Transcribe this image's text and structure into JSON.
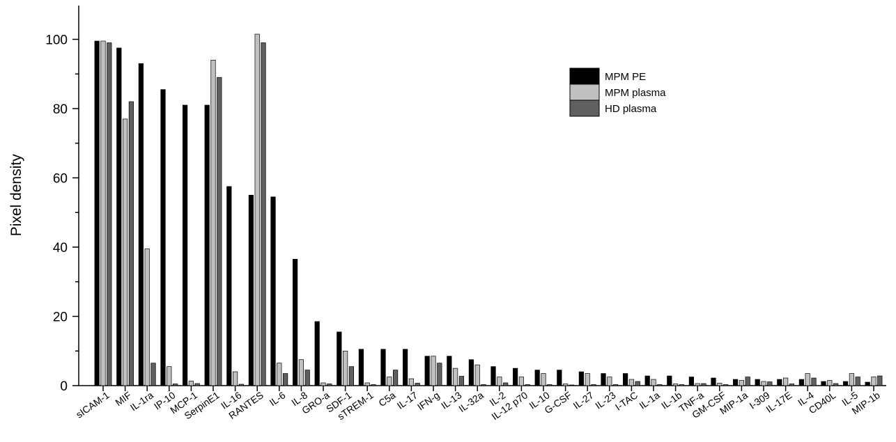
{
  "chart_data": {
    "type": "bar",
    "title": "",
    "xlabel": "",
    "ylabel": "Pixel density",
    "ylim": [
      0,
      110
    ],
    "yticks": [
      0,
      20,
      40,
      60,
      80,
      100
    ],
    "grid": false,
    "legend_position": "top-right",
    "categories": [
      "sICAM-1",
      "MIF",
      "IL-1ra",
      "IP-10",
      "MCP-1",
      "SerpinE1",
      "IL-16",
      "RANTES",
      "IL-6",
      "IL-8",
      "GRO-a",
      "SDF-1",
      "sTREM-1",
      "C5a",
      "IL-17",
      "IFN-g",
      "IL-13",
      "IL-32a",
      "IL-2",
      "IL-12 p70",
      "IL-10",
      "G-CSF",
      "IL-27",
      "IL-23",
      "I-TAC",
      "IL-1a",
      "IL-1b",
      "TNF-a",
      "GM-CSF",
      "MIP-1a",
      "I-309",
      "IL-17E",
      "IL-4",
      "CD40L",
      "IL-5",
      "MIP-1b"
    ],
    "series": [
      {
        "name": "MPM PE",
        "color": "#000000",
        "values": [
          99.5,
          97.5,
          93.0,
          85.5,
          81.0,
          81.0,
          57.5,
          55.0,
          54.5,
          36.5,
          18.5,
          15.5,
          10.5,
          10.5,
          10.5,
          8.5,
          8.5,
          7.5,
          5.5,
          5.0,
          4.5,
          4.5,
          4.0,
          3.5,
          3.5,
          2.8,
          2.8,
          2.5,
          2.2,
          1.8,
          1.8,
          1.8,
          1.8,
          1.2,
          1.2,
          1.0
        ]
      },
      {
        "name": "MPM plasma",
        "color": "#c0c0c0",
        "values": [
          99.5,
          77.0,
          39.5,
          5.5,
          1.3,
          94.0,
          4.0,
          101.5,
          6.5,
          7.5,
          0.8,
          10.0,
          0.8,
          2.5,
          2.0,
          8.5,
          5.0,
          6.0,
          2.5,
          2.5,
          3.5,
          0.5,
          3.5,
          2.5,
          1.8,
          1.8,
          0.5,
          0.6,
          0.7,
          1.5,
          1.2,
          2.2,
          3.5,
          1.5,
          3.5,
          2.5
        ]
      },
      {
        "name": "HD plasma",
        "color": "#606060",
        "values": [
          99.0,
          82.0,
          6.5,
          0.5,
          0.6,
          89.0,
          0.4,
          99.0,
          3.5,
          4.5,
          0.5,
          5.5,
          0.3,
          4.5,
          0.7,
          6.5,
          2.7,
          0.3,
          0.8,
          0.3,
          0.3,
          0.2,
          0.3,
          0.3,
          1.2,
          0.3,
          0.3,
          0.6,
          0.3,
          2.5,
          1.1,
          0.5,
          2.2,
          0.6,
          2.5,
          2.8
        ]
      }
    ]
  }
}
